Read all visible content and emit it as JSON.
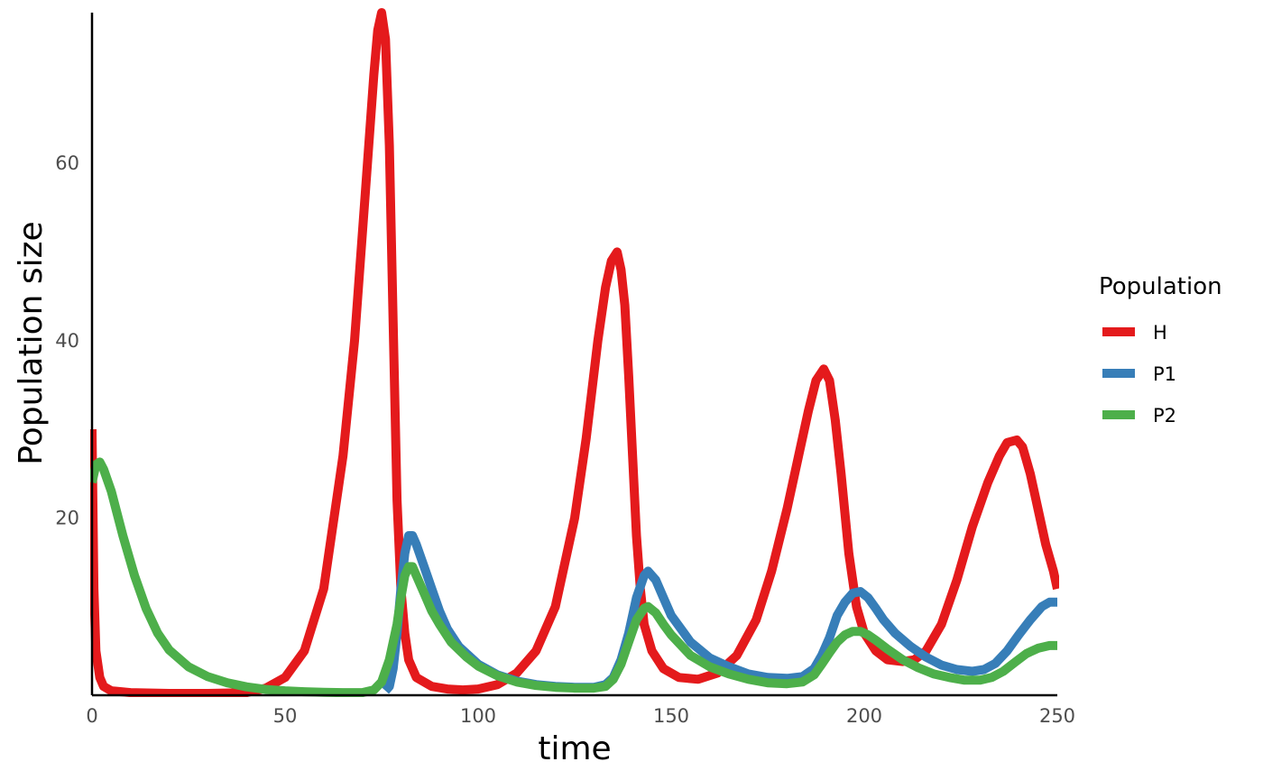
{
  "chart_data": {
    "type": "line",
    "title": "",
    "xlabel": "time",
    "ylabel": "Population size",
    "xlim": [
      0,
      250
    ],
    "ylim": [
      0,
      77
    ],
    "x_ticks": [
      0,
      50,
      100,
      150,
      200,
      250
    ],
    "y_ticks": [
      20,
      40,
      60
    ],
    "grid": false,
    "legend": {
      "title": "Population",
      "position": "right"
    },
    "series": [
      {
        "name": "H",
        "color": "#e41a1c",
        "points": [
          [
            0,
            30
          ],
          [
            0.5,
            12
          ],
          [
            1,
            5
          ],
          [
            2,
            2
          ],
          [
            3,
            1
          ],
          [
            5,
            0.5
          ],
          [
            10,
            0.3
          ],
          [
            20,
            0.2
          ],
          [
            30,
            0.2
          ],
          [
            40,
            0.3
          ],
          [
            45,
            0.8
          ],
          [
            50,
            2
          ],
          [
            55,
            5
          ],
          [
            60,
            12
          ],
          [
            65,
            27
          ],
          [
            68,
            40
          ],
          [
            71,
            58
          ],
          [
            73,
            70
          ],
          [
            74,
            75
          ],
          [
            75,
            77
          ],
          [
            76,
            74
          ],
          [
            77,
            62
          ],
          [
            78,
            42
          ],
          [
            79,
            22
          ],
          [
            80,
            12
          ],
          [
            81,
            7
          ],
          [
            82,
            4
          ],
          [
            84,
            2
          ],
          [
            88,
            1
          ],
          [
            92,
            0.7
          ],
          [
            96,
            0.6
          ],
          [
            100,
            0.7
          ],
          [
            105,
            1.2
          ],
          [
            110,
            2.5
          ],
          [
            115,
            5
          ],
          [
            120,
            10
          ],
          [
            125,
            20
          ],
          [
            128,
            29
          ],
          [
            131,
            40
          ],
          [
            133,
            46
          ],
          [
            134.5,
            49
          ],
          [
            136,
            50
          ],
          [
            137,
            48
          ],
          [
            138,
            44
          ],
          [
            139,
            36
          ],
          [
            140,
            27
          ],
          [
            141,
            18
          ],
          [
            142,
            12
          ],
          [
            143,
            8
          ],
          [
            145,
            5
          ],
          [
            148,
            3
          ],
          [
            152,
            2
          ],
          [
            157,
            1.8
          ],
          [
            162,
            2.5
          ],
          [
            167,
            4.5
          ],
          [
            172,
            8.5
          ],
          [
            176,
            14
          ],
          [
            180,
            21
          ],
          [
            183,
            27
          ],
          [
            185.5,
            32
          ],
          [
            187.5,
            35.5
          ],
          [
            189.5,
            36.8
          ],
          [
            191,
            35.5
          ],
          [
            192.5,
            31
          ],
          [
            194,
            25
          ],
          [
            196,
            16
          ],
          [
            198,
            10
          ],
          [
            200,
            7
          ],
          [
            203,
            5
          ],
          [
            206,
            4
          ],
          [
            210,
            3.8
          ],
          [
            213,
            4
          ],
          [
            216,
            5
          ],
          [
            220,
            8
          ],
          [
            224,
            13
          ],
          [
            228,
            19
          ],
          [
            232,
            24
          ],
          [
            235,
            27
          ],
          [
            237,
            28.5
          ],
          [
            239.5,
            28.8
          ],
          [
            241,
            28
          ],
          [
            243,
            25
          ],
          [
            245,
            21
          ],
          [
            247,
            17
          ],
          [
            249,
            14
          ],
          [
            250,
            12
          ]
        ]
      },
      {
        "name": "P1",
        "color": "#377eb8",
        "points": [
          [
            76,
            0.5
          ],
          [
            77,
            1
          ],
          [
            78,
            3
          ],
          [
            79,
            7
          ],
          [
            80,
            12
          ],
          [
            81,
            16
          ],
          [
            82,
            18
          ],
          [
            83,
            18
          ],
          [
            84,
            17
          ],
          [
            86,
            14.5
          ],
          [
            88,
            12
          ],
          [
            90,
            9.5
          ],
          [
            92,
            7.5
          ],
          [
            95,
            5.5
          ],
          [
            100,
            3.5
          ],
          [
            105,
            2.3
          ],
          [
            110,
            1.6
          ],
          [
            115,
            1.2
          ],
          [
            120,
            1
          ],
          [
            125,
            0.9
          ],
          [
            130,
            0.9
          ],
          [
            133,
            1.2
          ],
          [
            135,
            2
          ],
          [
            137,
            4
          ],
          [
            139,
            7
          ],
          [
            141,
            11
          ],
          [
            143,
            13.5
          ],
          [
            144,
            14
          ],
          [
            146,
            13
          ],
          [
            148,
            11
          ],
          [
            150,
            9
          ],
          [
            155,
            6
          ],
          [
            160,
            4.2
          ],
          [
            165,
            3.2
          ],
          [
            170,
            2.4
          ],
          [
            175,
            2
          ],
          [
            180,
            1.9
          ],
          [
            184,
            2.1
          ],
          [
            187,
            3
          ],
          [
            189,
            4.5
          ],
          [
            191,
            6.5
          ],
          [
            193,
            9
          ],
          [
            195,
            10.5
          ],
          [
            197,
            11.5
          ],
          [
            199,
            11.7
          ],
          [
            201,
            11
          ],
          [
            203,
            9.8
          ],
          [
            205,
            8.5
          ],
          [
            208,
            7
          ],
          [
            212,
            5.5
          ],
          [
            216,
            4.3
          ],
          [
            220,
            3.4
          ],
          [
            224,
            2.9
          ],
          [
            228,
            2.7
          ],
          [
            231,
            2.9
          ],
          [
            234,
            3.6
          ],
          [
            237,
            5
          ],
          [
            240,
            6.8
          ],
          [
            243,
            8.5
          ],
          [
            246,
            10
          ],
          [
            248,
            10.5
          ],
          [
            250,
            10.5
          ]
        ]
      },
      {
        "name": "P2",
        "color": "#4daf4a",
        "points": [
          [
            0,
            24
          ],
          [
            1,
            26
          ],
          [
            2,
            26.3
          ],
          [
            3,
            25.5
          ],
          [
            5,
            23
          ],
          [
            8,
            18
          ],
          [
            11,
            13.5
          ],
          [
            14,
            9.8
          ],
          [
            17,
            7
          ],
          [
            20,
            5.1
          ],
          [
            25,
            3.2
          ],
          [
            30,
            2.1
          ],
          [
            35,
            1.4
          ],
          [
            40,
            0.95
          ],
          [
            45,
            0.65
          ],
          [
            50,
            0.5
          ],
          [
            55,
            0.4
          ],
          [
            60,
            0.33
          ],
          [
            65,
            0.3
          ],
          [
            70,
            0.3
          ],
          [
            73,
            0.6
          ],
          [
            75,
            1.5
          ],
          [
            77,
            4
          ],
          [
            79,
            8
          ],
          [
            80,
            11
          ],
          [
            81,
            13.5
          ],
          [
            82,
            14.5
          ],
          [
            83,
            14.5
          ],
          [
            84,
            13.5
          ],
          [
            86,
            11.5
          ],
          [
            88,
            9.5
          ],
          [
            90,
            8
          ],
          [
            93,
            6
          ],
          [
            97,
            4.3
          ],
          [
            100,
            3.3
          ],
          [
            105,
            2.2
          ],
          [
            110,
            1.5
          ],
          [
            115,
            1.1
          ],
          [
            120,
            0.9
          ],
          [
            125,
            0.8
          ],
          [
            130,
            0.8
          ],
          [
            133,
            1
          ],
          [
            135,
            1.8
          ],
          [
            137,
            3.5
          ],
          [
            139,
            6
          ],
          [
            141,
            8.5
          ],
          [
            143,
            9.8
          ],
          [
            144,
            10
          ],
          [
            146,
            9.3
          ],
          [
            148,
            8
          ],
          [
            150,
            6.8
          ],
          [
            155,
            4.5
          ],
          [
            160,
            3.2
          ],
          [
            165,
            2.4
          ],
          [
            170,
            1.8
          ],
          [
            175,
            1.4
          ],
          [
            180,
            1.3
          ],
          [
            184,
            1.5
          ],
          [
            187,
            2.3
          ],
          [
            189,
            3.5
          ],
          [
            191,
            4.8
          ],
          [
            193,
            6
          ],
          [
            195,
            6.8
          ],
          [
            197,
            7.2
          ],
          [
            199,
            7.2
          ],
          [
            201,
            6.8
          ],
          [
            203,
            6.2
          ],
          [
            206,
            5.2
          ],
          [
            210,
            4
          ],
          [
            214,
            3.1
          ],
          [
            218,
            2.4
          ],
          [
            222,
            2
          ],
          [
            226,
            1.7
          ],
          [
            230,
            1.7
          ],
          [
            233,
            2
          ],
          [
            236,
            2.7
          ],
          [
            239,
            3.7
          ],
          [
            242,
            4.7
          ],
          [
            245,
            5.3
          ],
          [
            248,
            5.6
          ],
          [
            250,
            5.6
          ]
        ]
      }
    ]
  }
}
